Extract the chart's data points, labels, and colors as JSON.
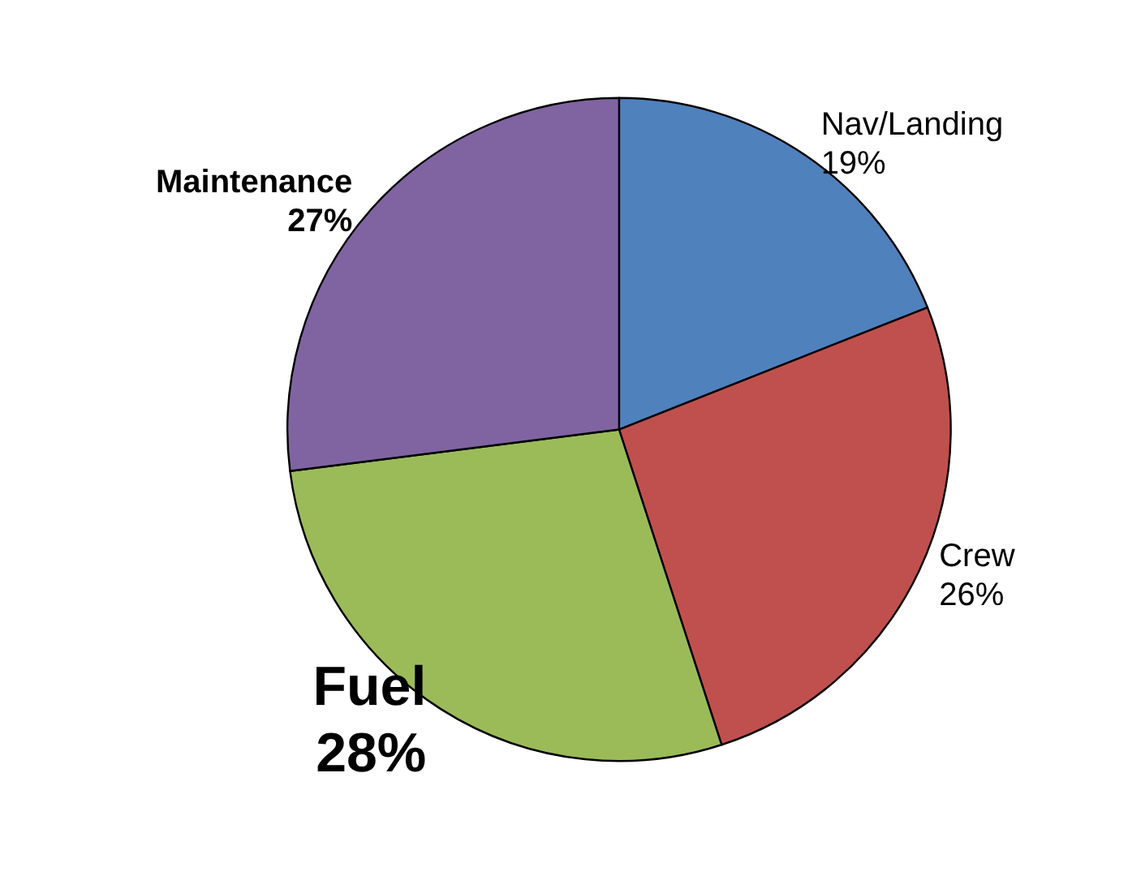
{
  "chart_data": {
    "type": "pie",
    "categories": [
      "Nav/Landing",
      "Crew",
      "Fuel",
      "Maintenance"
    ],
    "values": [
      19,
      26,
      28,
      27
    ],
    "colors": [
      "#4f81bd",
      "#c0504d",
      "#9bbb59",
      "#8064a2"
    ],
    "value_labels": [
      "19%",
      "26%",
      "28%",
      "27%"
    ]
  }
}
